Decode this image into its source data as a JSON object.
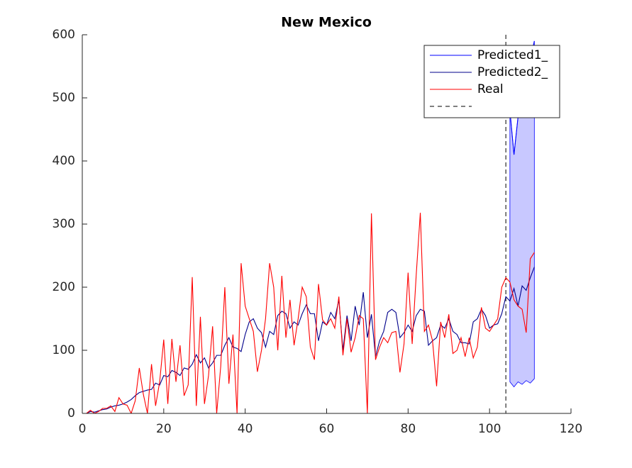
{
  "chart_data": {
    "type": "line",
    "title": "New Mexico",
    "x": [
      1,
      2,
      3,
      4,
      5,
      6,
      7,
      8,
      9,
      10,
      11,
      12,
      13,
      14,
      15,
      16,
      17,
      18,
      19,
      20,
      21,
      22,
      23,
      24,
      25,
      26,
      27,
      28,
      29,
      30,
      31,
      32,
      33,
      34,
      35,
      36,
      37,
      38,
      39,
      40,
      41,
      42,
      43,
      44,
      45,
      46,
      47,
      48,
      49,
      50,
      51,
      52,
      53,
      54,
      55,
      56,
      57,
      58,
      59,
      60,
      61,
      62,
      63,
      64,
      65,
      66,
      67,
      68,
      69,
      70,
      71,
      72,
      73,
      74,
      75,
      76,
      77,
      78,
      79,
      80,
      81,
      82,
      83,
      84,
      85,
      86,
      87,
      88,
      89,
      90,
      91,
      92,
      93,
      94,
      95,
      96,
      97,
      98,
      99,
      100,
      101,
      102,
      103,
      104,
      105,
      106,
      107,
      108,
      109,
      110,
      111
    ],
    "series": [
      {
        "name": "Predicted1_",
        "color": "#0000ff",
        "band_color": "#c8c8ff",
        "x": [
          105,
          106,
          107,
          108,
          109,
          110,
          111
        ],
        "values": [
          480,
          410,
          470,
          500,
          530,
          560,
          590
        ],
        "band_lower": [
          50,
          42,
          50,
          46,
          52,
          48,
          55
        ]
      },
      {
        "name": "Predicted2_",
        "color": "#00008b",
        "values": [
          0,
          3,
          2,
          4,
          6,
          7,
          10,
          12,
          13,
          15,
          18,
          22,
          28,
          33,
          35,
          37,
          38,
          48,
          45,
          60,
          58,
          68,
          65,
          60,
          72,
          70,
          78,
          93,
          80,
          88,
          72,
          80,
          92,
          92,
          108,
          120,
          105,
          103,
          98,
          125,
          145,
          150,
          135,
          128,
          105,
          130,
          125,
          155,
          162,
          158,
          135,
          145,
          140,
          158,
          172,
          158,
          158,
          115,
          145,
          140,
          160,
          150,
          180,
          100,
          155,
          115,
          170,
          140,
          192,
          120,
          157,
          90,
          115,
          130,
          160,
          165,
          160,
          120,
          128,
          140,
          130,
          155,
          165,
          162,
          108,
          115,
          120,
          140,
          135,
          150,
          130,
          125,
          112,
          112,
          110,
          145,
          150,
          165,
          155,
          135,
          140,
          142,
          158,
          185,
          178,
          198,
          170,
          202,
          195,
          215,
          232
        ]
      },
      {
        "name": "Real",
        "color": "#ff0000",
        "values": [
          0,
          5,
          0,
          3,
          8,
          8,
          12,
          3,
          25,
          15,
          13,
          0,
          20,
          72,
          30,
          0,
          78,
          12,
          50,
          117,
          15,
          118,
          50,
          108,
          28,
          45,
          216,
          12,
          153,
          15,
          60,
          138,
          0,
          75,
          200,
          47,
          125,
          0,
          238,
          170,
          150,
          130,
          66,
          100,
          150,
          238,
          200,
          100,
          218,
          120,
          180,
          108,
          150,
          200,
          185,
          105,
          85,
          205,
          148,
          140,
          150,
          135,
          185,
          92,
          150,
          97,
          120,
          155,
          150,
          0,
          317,
          85,
          105,
          120,
          112,
          128,
          130,
          65,
          110,
          223,
          110,
          220,
          318,
          130,
          140,
          115,
          43,
          145,
          120,
          157,
          95,
          100,
          120,
          90,
          120,
          88,
          105,
          168,
          135,
          130,
          140,
          150,
          200,
          215,
          208,
          180,
          170,
          165,
          128,
          245,
          255
        ]
      }
    ],
    "vline": {
      "x": 104,
      "color": "#000000"
    },
    "xlim": [
      0,
      120
    ],
    "xticks": [
      0,
      20,
      40,
      60,
      80,
      100,
      120
    ],
    "ylim": [
      0,
      600
    ],
    "yticks": [
      0,
      100,
      200,
      300,
      400,
      500,
      600
    ],
    "legend": "upper-right"
  }
}
